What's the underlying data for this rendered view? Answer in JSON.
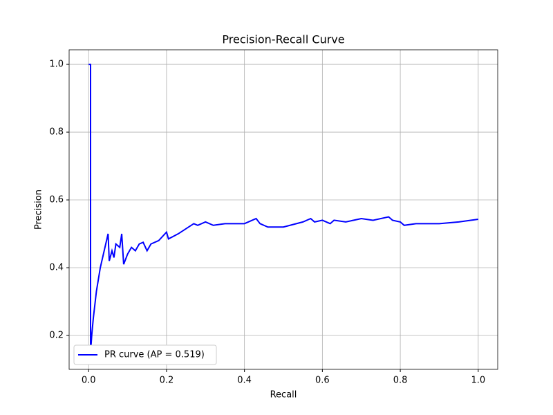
{
  "chart_data": {
    "type": "line",
    "title": "Precision-Recall Curve",
    "x_label": "Recall",
    "y_label": "Precision",
    "x": [
      0,
      0.005,
      0.005,
      0.008,
      0.012,
      0.015,
      0.02,
      0.03,
      0.04,
      0.05,
      0.053,
      0.06,
      0.065,
      0.07,
      0.08,
      0.085,
      0.09,
      0.1,
      0.11,
      0.12,
      0.13,
      0.14,
      0.15,
      0.16,
      0.18,
      0.2,
      0.205,
      0.23,
      0.27,
      0.28,
      0.3,
      0.32,
      0.35,
      0.4,
      0.43,
      0.44,
      0.46,
      0.5,
      0.55,
      0.57,
      0.58,
      0.6,
      0.62,
      0.63,
      0.66,
      0.7,
      0.73,
      0.77,
      0.78,
      0.8,
      0.81,
      0.84,
      0.9,
      0.95,
      1.0
    ],
    "series": [
      {
        "name": "PR curve (AP = 0.519)",
        "color": "#0000ff",
        "values": [
          1,
          1,
          0.15,
          0.2,
          0.25,
          0.28,
          0.33,
          0.4,
          0.45,
          0.5,
          0.42,
          0.45,
          0.43,
          0.47,
          0.46,
          0.5,
          0.41,
          0.44,
          0.46,
          0.45,
          0.47,
          0.475,
          0.45,
          0.47,
          0.48,
          0.505,
          0.485,
          0.5,
          0.53,
          0.525,
          0.535,
          0.525,
          0.53,
          0.53,
          0.545,
          0.53,
          0.52,
          0.52,
          0.535,
          0.545,
          0.535,
          0.54,
          0.53,
          0.54,
          0.535,
          0.545,
          0.54,
          0.55,
          0.54,
          0.535,
          0.525,
          0.53,
          0.53,
          0.535,
          0.543
        ]
      }
    ],
    "xlim": [
      -0.05,
      1.05
    ],
    "ylim": [
      0.1,
      1.043
    ],
    "xticks": [
      {
        "value": 0,
        "label": "0.0"
      },
      0.2,
      0.4,
      0.6,
      0.8,
      {
        "value": 1,
        "label": "1.0"
      }
    ],
    "yticks": [
      0.2,
      0.4,
      0.6,
      0.8,
      {
        "value": 1,
        "label": "1.0"
      }
    ],
    "grid": true,
    "legend": "lower left"
  }
}
